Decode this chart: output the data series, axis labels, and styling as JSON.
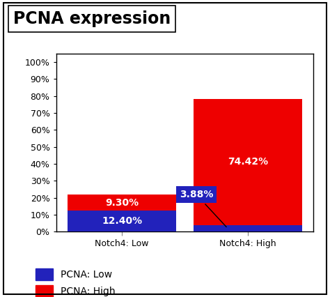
{
  "title": "PCNA expression",
  "categories": [
    "Notch4: Low",
    "Notch4: High"
  ],
  "pcna_low": [
    12.4,
    3.88
  ],
  "pcna_high": [
    9.3,
    74.42
  ],
  "bar_color_low": "#2222bb",
  "bar_color_high": "#ee0000",
  "label_low": "PCNA: Low",
  "label_high": "PCNA: High",
  "yticks": [
    0,
    10,
    20,
    30,
    40,
    50,
    60,
    70,
    80,
    90,
    100
  ],
  "ylim": [
    0,
    105
  ],
  "bar_width": 0.38,
  "x_positions": [
    0.28,
    0.72
  ],
  "xlim": [
    0.05,
    0.95
  ],
  "text_color": "white",
  "annotation_3_88": "3.88%",
  "annotation_9_30": "9.30%",
  "annotation_12_40": "12.40%",
  "annotation_74_42": "74.42%",
  "title_fontsize": 17,
  "tick_fontsize": 9,
  "legend_fontsize": 10,
  "bar_label_fontsize": 10,
  "fig_bg": "#ffffff",
  "plot_bg": "#ffffff"
}
